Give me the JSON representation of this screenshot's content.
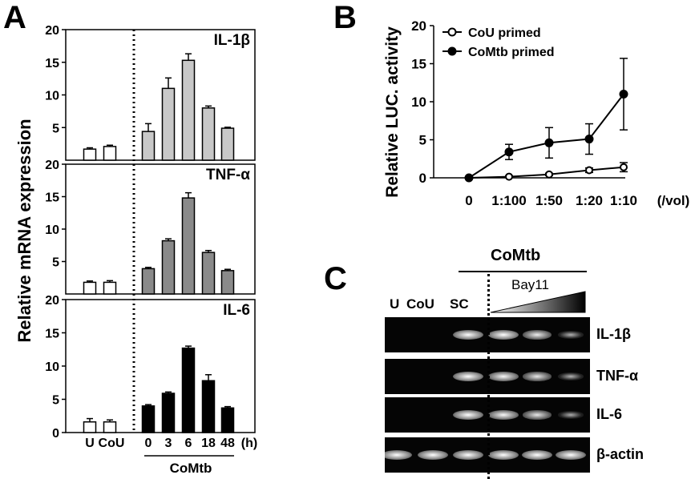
{
  "panels": {
    "A": {
      "letter": "A",
      "ylabel": "Relative mRNA expression",
      "xcategories": [
        "U",
        "CoU",
        "0",
        "3",
        "6",
        "18",
        "48"
      ],
      "xunit": "(h)",
      "group_label": "CoMtb",
      "subplots": [
        {
          "title": "IL-1β",
          "ylim": [
            0,
            20
          ],
          "yticks": [
            "20",
            "15",
            "10",
            "5"
          ],
          "fill": "#c8c8c8",
          "values": [
            1.7,
            2.1,
            4.4,
            11.0,
            15.3,
            8.0,
            4.9
          ],
          "errors": [
            0.2,
            0.2,
            1.2,
            1.6,
            1.0,
            0.3,
            0.15
          ]
        },
        {
          "title": "TNF-α",
          "ylim": [
            0,
            20
          ],
          "yticks": [
            "20",
            "15",
            "10",
            "5"
          ],
          "fill": "#8a8a8a",
          "values": [
            1.8,
            1.8,
            3.9,
            8.2,
            14.8,
            6.4,
            3.6
          ],
          "errors": [
            0.2,
            0.25,
            0.2,
            0.3,
            0.8,
            0.3,
            0.2
          ]
        },
        {
          "title": "IL-6",
          "ylim": [
            0,
            20
          ],
          "yticks": [
            "20",
            "15",
            "10",
            "5",
            "0"
          ],
          "fill": "#000000",
          "values": [
            1.6,
            1.6,
            4.0,
            5.9,
            12.7,
            7.8,
            3.7
          ],
          "errors": [
            0.5,
            0.3,
            0.2,
            0.2,
            0.3,
            0.9,
            0.2
          ]
        }
      ]
    },
    "B": {
      "letter": "B",
      "chart_data": {
        "type": "line",
        "ylabel": "Relative LUC. activity",
        "ylim": [
          0,
          20
        ],
        "yticks": [
          "20",
          "15",
          "10",
          "5",
          "0"
        ],
        "categories": [
          "0",
          "1:100",
          "1:50",
          "1:20",
          "1:10"
        ],
        "xunit": "(/vol)",
        "legend_position": "top-left",
        "series": [
          {
            "name": "CoU primed",
            "marker": "open-circle",
            "values": [
              0,
              0.15,
              0.45,
              1.0,
              1.4
            ],
            "errors": [
              0,
              0.1,
              0.15,
              0.3,
              0.6
            ]
          },
          {
            "name": "CoMtb primed",
            "marker": "filled-circle",
            "values": [
              0,
              3.4,
              4.6,
              5.1,
              11.0
            ],
            "errors": [
              0,
              1.0,
              2.0,
              2.0,
              4.7
            ]
          }
        ]
      }
    },
    "C": {
      "letter": "C",
      "group_label": "CoMtb",
      "treatment_label": "Bay11",
      "lanes": [
        "U",
        "CoU",
        "SC"
      ],
      "genes": [
        "IL-1β",
        "TNF-α",
        "IL-6",
        "β-actin"
      ],
      "band_intensity": [
        [
          0,
          0,
          1.0,
          1.0,
          0.85,
          0.35
        ],
        [
          0,
          0,
          1.0,
          0.95,
          0.8,
          0.35
        ],
        [
          0,
          0,
          1.0,
          0.95,
          0.8,
          0.3
        ],
        [
          1.0,
          1.0,
          1.0,
          1.0,
          1.0,
          1.0
        ]
      ]
    }
  }
}
